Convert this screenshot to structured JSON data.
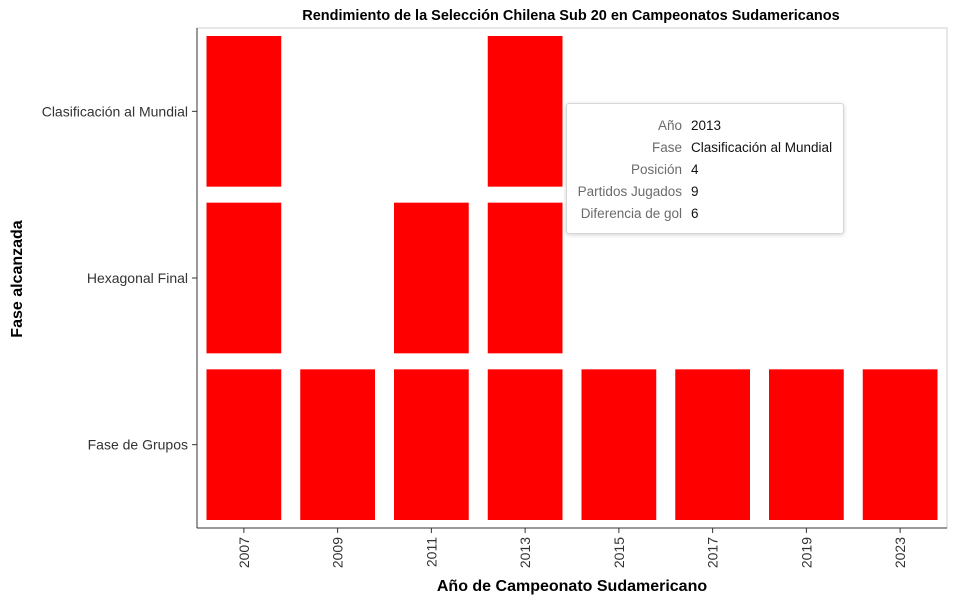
{
  "chart_data": {
    "type": "heatmap",
    "title": "Rendimiento de la Selección Chilena Sub 20 en Campeonatos Sudamericanos",
    "xlabel": "Año de Campeonato Sudamericano",
    "ylabel": "Fase alcanzada",
    "x_categories": [
      "2007",
      "2009",
      "2011",
      "2013",
      "2015",
      "2017",
      "2019",
      "2023"
    ],
    "y_categories": [
      "Fase de Grupos",
      "Hexagonal Final",
      "Clasificación al Mundial"
    ],
    "cells": [
      {
        "year": "2007",
        "phase": "Fase de Grupos"
      },
      {
        "year": "2007",
        "phase": "Hexagonal Final"
      },
      {
        "year": "2007",
        "phase": "Clasificación al Mundial"
      },
      {
        "year": "2009",
        "phase": "Fase de Grupos"
      },
      {
        "year": "2011",
        "phase": "Fase de Grupos"
      },
      {
        "year": "2011",
        "phase": "Hexagonal Final"
      },
      {
        "year": "2013",
        "phase": "Fase de Grupos"
      },
      {
        "year": "2013",
        "phase": "Hexagonal Final"
      },
      {
        "year": "2013",
        "phase": "Clasificación al Mundial"
      },
      {
        "year": "2015",
        "phase": "Fase de Grupos"
      },
      {
        "year": "2017",
        "phase": "Fase de Grupos"
      },
      {
        "year": "2019",
        "phase": "Fase de Grupos"
      },
      {
        "year": "2023",
        "phase": "Fase de Grupos"
      }
    ],
    "fill_color": "#ff0000",
    "grid": false
  },
  "tooltip": {
    "rows": [
      {
        "key": "Año",
        "value": "2013"
      },
      {
        "key": "Fase",
        "value": "Clasificación al Mundial"
      },
      {
        "key": "Posición",
        "value": "4"
      },
      {
        "key": "Partidos Jugados",
        "value": "9"
      },
      {
        "key": "Diferencia de gol",
        "value": "6"
      }
    ]
  }
}
